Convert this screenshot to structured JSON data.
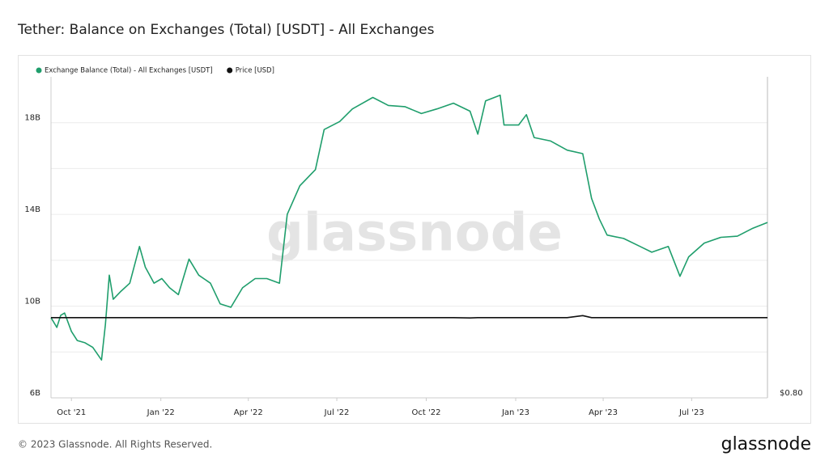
{
  "chart_data": {
    "type": "line",
    "title": "Tether: Balance on Exchanges (Total) [USDT] - All Exchanges",
    "watermark": "glassnode",
    "footer": "© 2023 Glassnode. All Rights Reserved.",
    "brand": "glassnode",
    "legend": "top-left",
    "x": [
      "2021-09-10",
      "2021-09-16",
      "2021-09-20",
      "2021-09-24",
      "2021-10-01",
      "2021-10-07",
      "2021-10-15",
      "2021-10-23",
      "2021-11-01",
      "2021-11-05",
      "2021-11-09",
      "2021-11-13",
      "2021-11-21",
      "2021-11-30",
      "2021-12-10",
      "2021-12-16",
      "2021-12-25",
      "2022-01-02",
      "2022-01-10",
      "2022-01-19",
      "2022-01-30",
      "2022-02-09",
      "2022-02-21",
      "2022-03-03",
      "2022-03-14",
      "2022-03-26",
      "2022-04-08",
      "2022-04-20",
      "2022-05-03",
      "2022-05-11",
      "2022-05-24",
      "2022-06-09",
      "2022-06-18",
      "2022-07-04",
      "2022-07-17",
      "2022-08-07",
      "2022-08-23",
      "2022-09-09",
      "2022-09-26",
      "2022-10-12",
      "2022-10-29",
      "2022-11-15",
      "2022-11-23",
      "2022-12-01",
      "2022-12-16",
      "2022-12-20",
      "2023-01-04",
      "2023-01-12",
      "2023-01-20",
      "2023-02-06",
      "2023-02-23",
      "2023-03-11",
      "2023-03-20",
      "2023-03-28",
      "2023-04-05",
      "2023-04-22",
      "2023-05-09",
      "2023-05-21",
      "2023-06-07",
      "2023-06-19",
      "2023-06-28",
      "2023-07-14",
      "2023-07-31",
      "2023-08-17",
      "2023-09-02",
      "2023-09-17"
    ],
    "series": [
      {
        "name": "Exchange Balance (Total) - All Exchanges [USDT]",
        "color": "#1f9e6c",
        "axis": "y",
        "values": [
          9.5,
          9.07,
          9.6,
          9.7,
          8.9,
          8.5,
          8.4,
          8.2,
          7.65,
          9.2,
          11.35,
          10.3,
          10.65,
          11.0,
          12.6,
          11.7,
          11.0,
          11.2,
          10.8,
          10.5,
          12.05,
          11.35,
          11.0,
          10.1,
          9.95,
          10.8,
          11.2,
          11.2,
          11.0,
          14.0,
          15.25,
          15.95,
          17.7,
          18.05,
          18.6,
          19.1,
          18.75,
          18.7,
          18.4,
          18.6,
          18.85,
          18.5,
          17.5,
          18.95,
          19.2,
          17.9,
          17.9,
          18.35,
          17.35,
          17.2,
          16.8,
          16.65,
          14.7,
          13.8,
          13.1,
          12.95,
          12.6,
          12.35,
          12.6,
          11.3,
          12.15,
          12.75,
          13.0,
          13.05,
          13.4,
          13.65
        ]
      },
      {
        "name": "Price [USD]",
        "color": "#111111",
        "axis": "y2",
        "values": [
          1.0,
          1.0,
          1.0,
          1.0,
          1.0,
          1.0,
          1.0,
          1.0,
          1.0,
          1.0,
          1.0,
          1.0,
          1.0,
          1.0,
          1.0,
          1.0,
          1.0,
          1.0,
          1.0,
          1.0,
          1.0,
          1.0,
          1.0,
          1.0,
          1.0,
          1.0,
          1.0,
          1.0,
          1.0,
          1.0,
          1.0,
          1.0,
          1.0,
          1.0,
          1.0,
          1.0,
          1.0,
          1.0,
          1.0,
          1.0,
          1.0,
          0.999,
          1.0,
          1.0,
          1.0,
          1.0,
          1.0,
          1.0,
          1.0,
          1.0,
          1.0,
          1.005,
          1.0,
          1.0,
          1.0,
          1.0,
          1.0,
          1.0,
          1.0,
          1.0,
          1.0,
          1.0,
          1.0,
          1.0,
          1.0,
          1.0
        ]
      }
    ],
    "xlim": [
      "2021-09-10",
      "2023-09-17"
    ],
    "xticks": [
      {
        "value": "2021-10-01",
        "label": "Oct '21"
      },
      {
        "value": "2022-01-01",
        "label": "Jan '22"
      },
      {
        "value": "2022-04-01",
        "label": "Apr '22"
      },
      {
        "value": "2022-07-01",
        "label": "Jul '22"
      },
      {
        "value": "2022-10-01",
        "label": "Oct '22"
      },
      {
        "value": "2023-01-01",
        "label": "Jan '23"
      },
      {
        "value": "2023-04-01",
        "label": "Apr '23"
      },
      {
        "value": "2023-07-01",
        "label": "Jul '23"
      }
    ],
    "ylim": [
      6,
      20
    ],
    "yticks": [
      {
        "value": 6,
        "label": "6B"
      },
      {
        "value": 10,
        "label": "10B"
      },
      {
        "value": 14,
        "label": "14B"
      },
      {
        "value": 18,
        "label": "18B"
      }
    ],
    "y2lim": [
      0.8,
      1.6
    ],
    "y2ticks": [
      {
        "value": 0.8,
        "label": "$0.80"
      }
    ],
    "grid": true
  }
}
